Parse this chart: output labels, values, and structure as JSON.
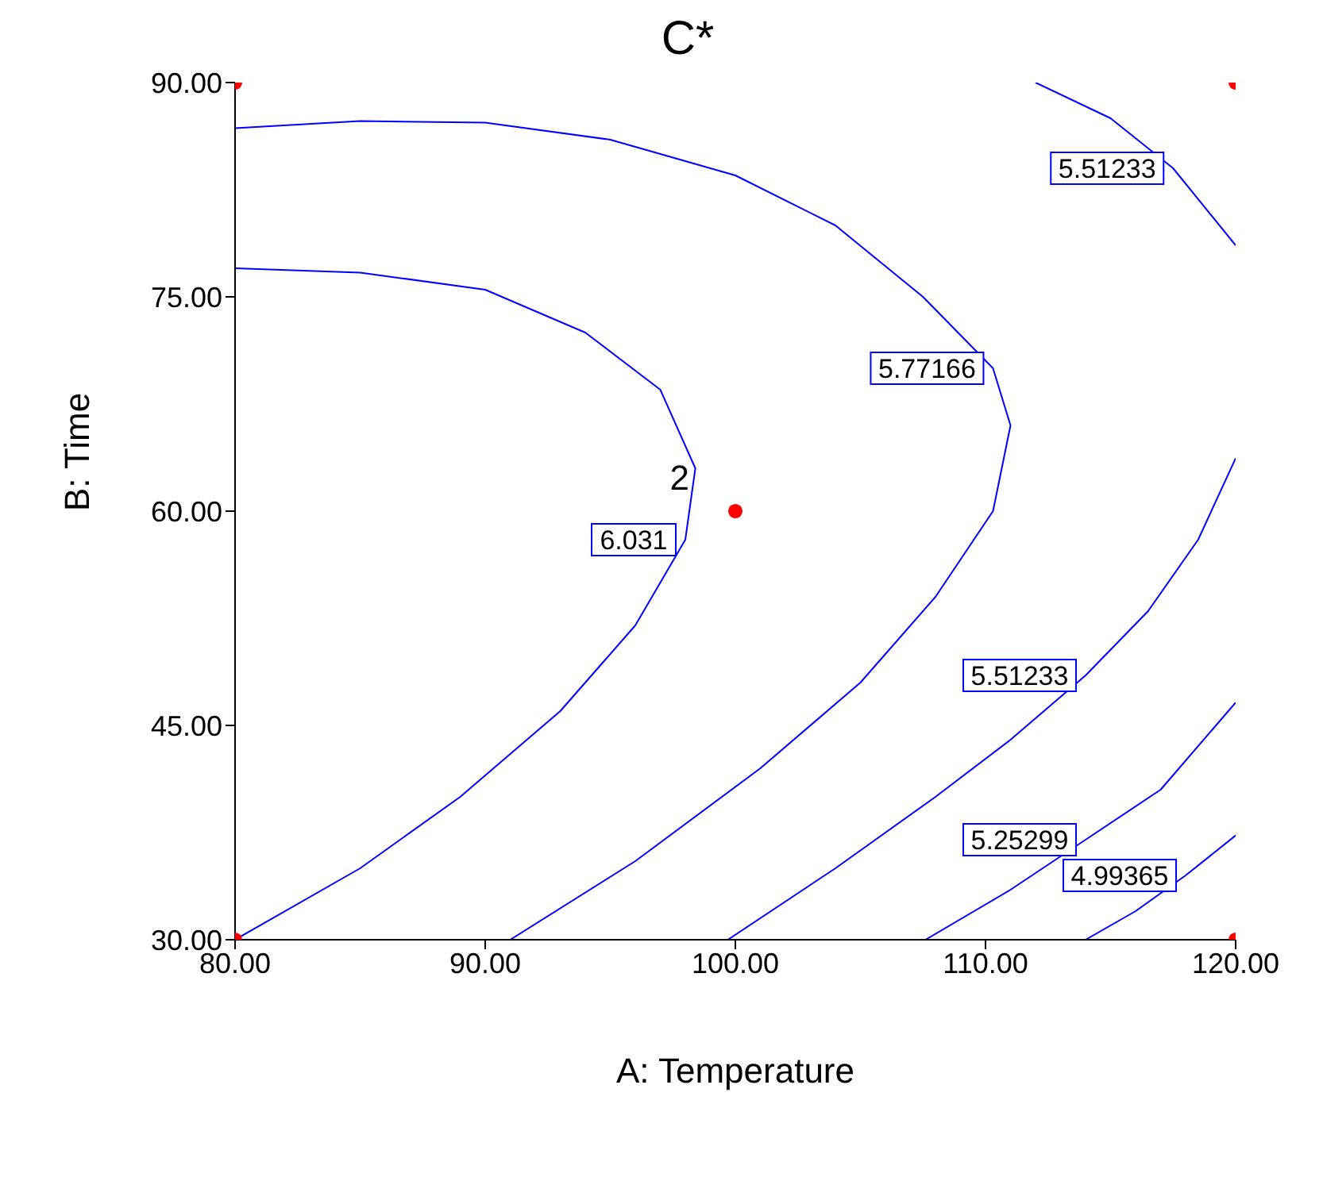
{
  "chart_data": {
    "type": "line",
    "title": "C*",
    "xlabel": "A: Temperature",
    "ylabel": "B: Time",
    "xlim": [
      80,
      120
    ],
    "xticks": [
      {
        "value": 80,
        "label": "80.00"
      },
      {
        "value": 90,
        "label": "90.00"
      },
      {
        "value": 100,
        "label": "100.00"
      },
      {
        "value": 110,
        "label": "110.00"
      },
      {
        "value": 120,
        "label": "120.00"
      }
    ],
    "ylim": [
      30,
      90
    ],
    "yticks": [
      {
        "value": 30,
        "label": "30.00"
      },
      {
        "value": 45,
        "label": "45.00"
      },
      {
        "value": 60,
        "label": "60.00"
      },
      {
        "value": 75,
        "label": "75.00"
      },
      {
        "value": 90,
        "label": "90.00"
      }
    ],
    "grid": false,
    "legend": false,
    "marker": "none",
    "line_style": "solid",
    "series": [
      {
        "name": "6.031",
        "type": "line",
        "color": "#0000ff",
        "x": [
          80,
          85,
          90,
          94,
          97,
          98.4,
          98,
          96,
          93,
          89,
          85,
          80
        ],
        "values": [
          77,
          76.7,
          75.5,
          72.5,
          68.5,
          63,
          58,
          52,
          46,
          40,
          35,
          30
        ]
      },
      {
        "name": "5.77166",
        "type": "line",
        "color": "#0000ff",
        "x": [
          80,
          85,
          90,
          95,
          100,
          104,
          107.5,
          110.3,
          111,
          110.3,
          108,
          105,
          101,
          96,
          91
        ],
        "values": [
          86.8,
          87.3,
          87.2,
          86,
          83.5,
          80,
          75,
          70,
          66,
          60,
          54,
          48,
          42,
          35.5,
          30
        ]
      },
      {
        "name": "5.51233",
        "type": "line",
        "color": "#0000ff",
        "x": [
          112,
          115,
          117.5,
          120
        ],
        "values": [
          90,
          87.5,
          84,
          78.6
        ]
      },
      {
        "name": "5.51233",
        "type": "line",
        "color": "#0000ff",
        "x": [
          99.7,
          104,
          108,
          111,
          114,
          116.5,
          118.5,
          120
        ],
        "values": [
          30,
          35,
          40,
          44,
          48.5,
          53,
          58,
          63.7
        ]
      },
      {
        "name": "5.25299",
        "type": "line",
        "color": "#0000ff",
        "x": [
          107.6,
          111,
          114,
          117,
          120
        ],
        "values": [
          30,
          33.5,
          37,
          40.5,
          46.6
        ]
      },
      {
        "name": "4.99365",
        "type": "line",
        "color": "#0000ff",
        "x": [
          114,
          116,
          118,
          120
        ],
        "values": [
          30,
          32,
          34.5,
          37.3
        ]
      },
      {
        "type": "scatter",
        "marker": "circle",
        "color": "#ff0000",
        "x": [
          80,
          120,
          100,
          80,
          120
        ],
        "values": [
          90,
          90,
          60,
          30,
          30
        ]
      }
    ],
    "annotations": [
      {
        "text": "2",
        "x": 100,
        "y": 60
      }
    ]
  }
}
